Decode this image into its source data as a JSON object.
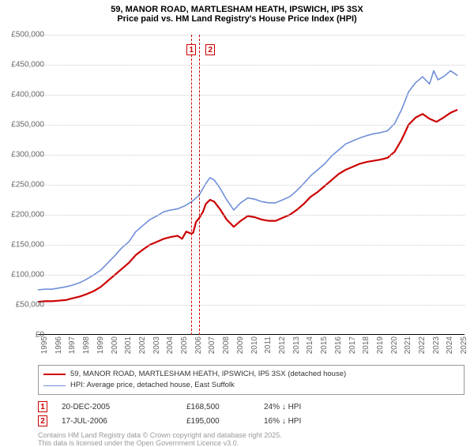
{
  "title": {
    "line1": "59, MANOR ROAD, MARTLESHAM HEATH, IPSWICH, IP5 3SX",
    "line2": "Price paid vs. HM Land Registry's House Price Index (HPI)",
    "fontsize": 11,
    "color": "#000000"
  },
  "chart": {
    "type": "line",
    "background": "#ffffff",
    "grid_color": "#cccccc",
    "axis_text_color": "#666666",
    "axis_fontsize": 10,
    "y_axis": {
      "min": 0,
      "max": 500000,
      "tick_step": 50000,
      "tick_labels": [
        "£0",
        "£50,000",
        "£100,000",
        "£150,000",
        "£200,000",
        "£250,000",
        "£300,000",
        "£350,000",
        "£400,000",
        "£450,000",
        "£500,000"
      ]
    },
    "x_axis": {
      "min": 1995,
      "max": 2025.5,
      "tick_step": 1,
      "tick_labels": [
        "1995",
        "1996",
        "1997",
        "1998",
        "1999",
        "2000",
        "2001",
        "2002",
        "2003",
        "2004",
        "2005",
        "2006",
        "2007",
        "2008",
        "2009",
        "2010",
        "2011",
        "2012",
        "2013",
        "2014",
        "2015",
        "2016",
        "2017",
        "2018",
        "2019",
        "2020",
        "2021",
        "2022",
        "2023",
        "2024",
        "2025"
      ]
    },
    "series": [
      {
        "name": "price_paid",
        "label": "59, MANOR ROAD, MARTLESHAM HEATH, IPSWICH, IP5 3SX (detached house)",
        "color": "#cc0000",
        "width": 2.2,
        "data": [
          [
            1995,
            55000
          ],
          [
            1995.5,
            56000
          ],
          [
            1996,
            56000
          ],
          [
            1996.5,
            57000
          ],
          [
            1997,
            58000
          ],
          [
            1997.5,
            61000
          ],
          [
            1998,
            64000
          ],
          [
            1998.5,
            68000
          ],
          [
            1999,
            73000
          ],
          [
            1999.5,
            80000
          ],
          [
            2000,
            90000
          ],
          [
            2000.5,
            100000
          ],
          [
            2001,
            110000
          ],
          [
            2001.5,
            120000
          ],
          [
            2002,
            133000
          ],
          [
            2002.5,
            142000
          ],
          [
            2003,
            150000
          ],
          [
            2003.5,
            155000
          ],
          [
            2004,
            160000
          ],
          [
            2004.5,
            163000
          ],
          [
            2005,
            165000
          ],
          [
            2005.3,
            160000
          ],
          [
            2005.6,
            172000
          ],
          [
            2005.97,
            168500
          ],
          [
            2006.1,
            170000
          ],
          [
            2006.3,
            188000
          ],
          [
            2006.54,
            195000
          ],
          [
            2006.8,
            205000
          ],
          [
            2007,
            218000
          ],
          [
            2007.3,
            225000
          ],
          [
            2007.6,
            222000
          ],
          [
            2008,
            210000
          ],
          [
            2008.5,
            192000
          ],
          [
            2009,
            180000
          ],
          [
            2009.5,
            190000
          ],
          [
            2010,
            198000
          ],
          [
            2010.5,
            196000
          ],
          [
            2011,
            192000
          ],
          [
            2011.5,
            190000
          ],
          [
            2012,
            190000
          ],
          [
            2012.5,
            195000
          ],
          [
            2013,
            200000
          ],
          [
            2013.5,
            208000
          ],
          [
            2014,
            218000
          ],
          [
            2014.5,
            230000
          ],
          [
            2015,
            238000
          ],
          [
            2015.5,
            248000
          ],
          [
            2016,
            258000
          ],
          [
            2016.5,
            268000
          ],
          [
            2017,
            275000
          ],
          [
            2017.5,
            280000
          ],
          [
            2018,
            285000
          ],
          [
            2018.5,
            288000
          ],
          [
            2019,
            290000
          ],
          [
            2019.5,
            292000
          ],
          [
            2020,
            295000
          ],
          [
            2020.5,
            305000
          ],
          [
            2021,
            325000
          ],
          [
            2021.5,
            350000
          ],
          [
            2022,
            362000
          ],
          [
            2022.5,
            368000
          ],
          [
            2023,
            360000
          ],
          [
            2023.5,
            355000
          ],
          [
            2024,
            362000
          ],
          [
            2024.5,
            370000
          ],
          [
            2025,
            375000
          ]
        ]
      },
      {
        "name": "hpi",
        "label": "HPI: Average price, detached house, East Suffolk",
        "color": "#6f8fd8",
        "width": 1.6,
        "data": [
          [
            1995,
            75000
          ],
          [
            1995.5,
            76000
          ],
          [
            1996,
            76000
          ],
          [
            1996.5,
            78000
          ],
          [
            1997,
            80000
          ],
          [
            1997.5,
            83000
          ],
          [
            1998,
            87000
          ],
          [
            1998.5,
            93000
          ],
          [
            1999,
            100000
          ],
          [
            1999.5,
            108000
          ],
          [
            2000,
            120000
          ],
          [
            2000.5,
            132000
          ],
          [
            2001,
            145000
          ],
          [
            2001.5,
            155000
          ],
          [
            2002,
            172000
          ],
          [
            2002.5,
            182000
          ],
          [
            2003,
            192000
          ],
          [
            2003.5,
            198000
          ],
          [
            2004,
            205000
          ],
          [
            2004.5,
            208000
          ],
          [
            2005,
            210000
          ],
          [
            2005.5,
            215000
          ],
          [
            2006,
            222000
          ],
          [
            2006.5,
            232000
          ],
          [
            2007,
            252000
          ],
          [
            2007.3,
            262000
          ],
          [
            2007.6,
            258000
          ],
          [
            2008,
            245000
          ],
          [
            2008.5,
            225000
          ],
          [
            2009,
            208000
          ],
          [
            2009.5,
            220000
          ],
          [
            2010,
            228000
          ],
          [
            2010.5,
            226000
          ],
          [
            2011,
            222000
          ],
          [
            2011.5,
            220000
          ],
          [
            2012,
            220000
          ],
          [
            2012.5,
            225000
          ],
          [
            2013,
            230000
          ],
          [
            2013.5,
            240000
          ],
          [
            2014,
            252000
          ],
          [
            2014.5,
            265000
          ],
          [
            2015,
            275000
          ],
          [
            2015.5,
            285000
          ],
          [
            2016,
            298000
          ],
          [
            2016.5,
            308000
          ],
          [
            2017,
            318000
          ],
          [
            2017.5,
            323000
          ],
          [
            2018,
            328000
          ],
          [
            2018.5,
            332000
          ],
          [
            2019,
            335000
          ],
          [
            2019.5,
            337000
          ],
          [
            2020,
            340000
          ],
          [
            2020.5,
            352000
          ],
          [
            2021,
            375000
          ],
          [
            2021.5,
            405000
          ],
          [
            2022,
            420000
          ],
          [
            2022.5,
            430000
          ],
          [
            2023,
            418000
          ],
          [
            2023.3,
            440000
          ],
          [
            2023.6,
            425000
          ],
          [
            2024,
            430000
          ],
          [
            2024.5,
            440000
          ],
          [
            2025,
            432000
          ]
        ]
      }
    ],
    "events": [
      {
        "id": "1",
        "x": 2005.97,
        "color": "#cc0000",
        "date": "20-DEC-2005",
        "price": "£168,500",
        "delta": "24% ↓ HPI"
      },
      {
        "id": "2",
        "x": 2006.54,
        "color": "#cc0000",
        "date": "17-JUL-2006",
        "price": "£195,000",
        "delta": "16% ↓ HPI"
      }
    ],
    "event_label_box": {
      "top_offset": 12,
      "size": 12,
      "fontsize": 10
    }
  },
  "legend": {
    "border_color": "#999999",
    "fontsize": 9.5,
    "text_color": "#333333"
  },
  "footnote": {
    "line1": "Contains HM Land Registry data © Crown copyright and database right 2025.",
    "line2": "This data is licensed under the Open Government Licence v3.0.",
    "color": "#999999",
    "fontsize": 9
  }
}
